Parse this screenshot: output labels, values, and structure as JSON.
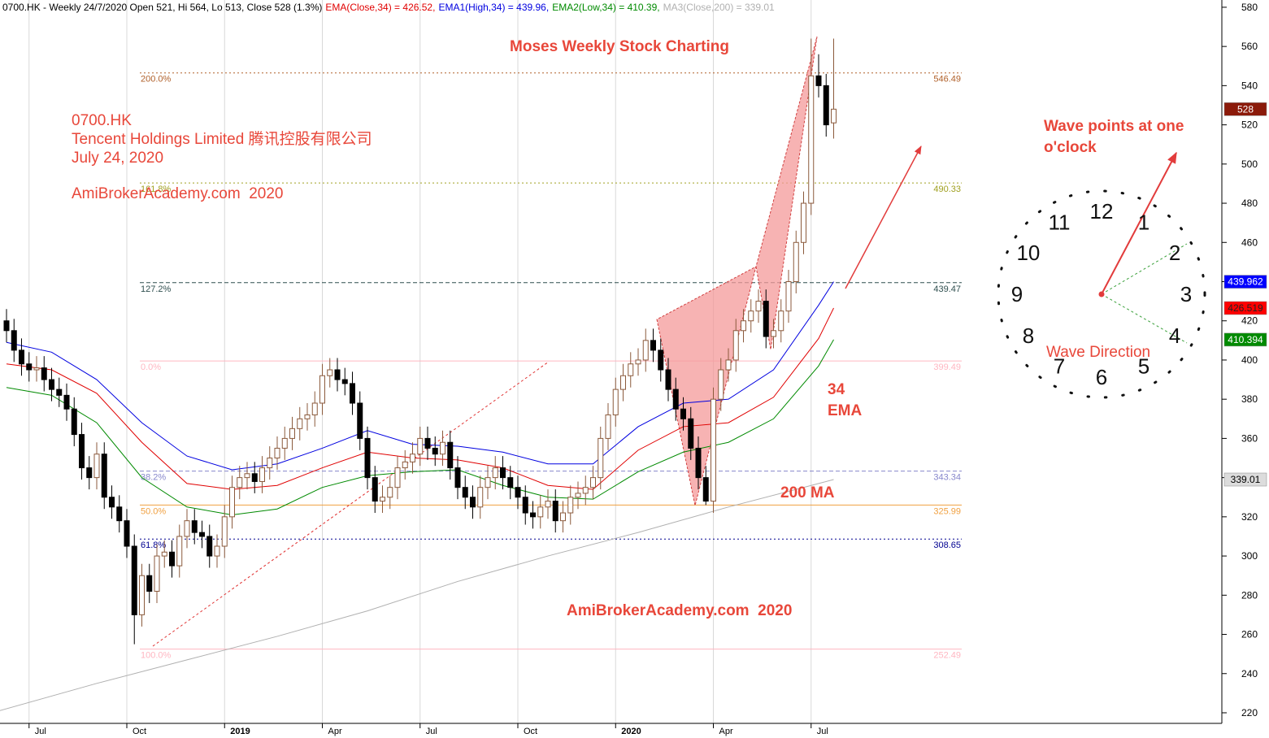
{
  "chart_data": {
    "type": "candlestick",
    "title": "0700.HK - Weekly 24/7/2020 Open 521, Hi 564, Lo 513, Close 528 (1.3%)",
    "categories": [
      null,
      null,
      null,
      "Jul",
      null,
      null,
      null,
      null,
      null,
      null,
      null,
      null,
      null,
      null,
      null,
      null,
      "Oct",
      null,
      null,
      null,
      null,
      null,
      null,
      null,
      null,
      null,
      null,
      null,
      null,
      "2019",
      null,
      null,
      null,
      null,
      null,
      null,
      null,
      null,
      null,
      null,
      null,
      null,
      "Apr",
      null,
      null,
      null,
      null,
      null,
      null,
      null,
      null,
      null,
      null,
      null,
      null,
      "Jul",
      null,
      null,
      null,
      null,
      null,
      null,
      null,
      null,
      null,
      null,
      null,
      null,
      "Oct",
      null,
      null,
      null,
      null,
      null,
      null,
      null,
      null,
      null,
      null,
      null,
      null,
      "2020",
      null,
      null,
      null,
      null,
      null,
      null,
      null,
      null,
      null,
      null,
      null,
      null,
      "Apr",
      null,
      null,
      null,
      null,
      null,
      null,
      null,
      null,
      null,
      null,
      null,
      null,
      "Jul",
      null,
      null,
      null
    ],
    "ohlc": {
      "up_color": "#8b5a3c",
      "down_color": "#000000",
      "open": [
        420,
        415,
        405,
        398,
        395,
        396,
        390,
        385,
        382,
        375,
        362,
        345,
        340,
        352,
        330,
        325,
        318,
        305,
        270,
        290,
        282,
        300,
        302,
        295,
        310,
        318,
        312,
        310,
        300,
        305,
        320,
        335,
        340,
        342,
        338,
        345,
        350,
        355,
        360,
        365,
        370,
        372,
        378,
        392,
        395,
        390,
        388,
        378,
        360,
        340,
        328,
        330,
        335,
        345,
        348,
        352,
        360,
        355,
        352,
        358,
        345,
        335,
        330,
        325,
        335,
        340,
        345,
        340,
        335,
        330,
        322,
        320,
        325,
        328,
        318,
        322,
        330,
        332,
        335,
        340,
        360,
        372,
        385,
        392,
        398,
        400,
        410,
        405,
        395,
        385,
        375,
        370,
        355,
        340,
        328,
        380,
        395,
        400,
        415,
        420,
        425,
        430,
        412,
        415,
        425,
        440,
        460,
        480,
        545,
        540,
        521
      ],
      "high": [
        426,
        421,
        411,
        404,
        402,
        402,
        396,
        391,
        388,
        381,
        368,
        351,
        358,
        358,
        336,
        331,
        324,
        311,
        296,
        296,
        306,
        308,
        308,
        316,
        324,
        324,
        318,
        316,
        311,
        326,
        341,
        346,
        348,
        348,
        351,
        356,
        361,
        366,
        371,
        376,
        378,
        384,
        398,
        401,
        401,
        396,
        394,
        384,
        366,
        346,
        336,
        341,
        351,
        354,
        358,
        366,
        366,
        361,
        364,
        364,
        351,
        341,
        336,
        341,
        346,
        351,
        351,
        346,
        341,
        336,
        328,
        331,
        334,
        334,
        328,
        336,
        338,
        341,
        346,
        366,
        378,
        391,
        398,
        404,
        406,
        416,
        416,
        411,
        401,
        391,
        381,
        376,
        361,
        346,
        386,
        401,
        406,
        421,
        426,
        431,
        436,
        436,
        421,
        431,
        446,
        466,
        486,
        564,
        556,
        546,
        564
      ],
      "low": [
        409,
        399,
        392,
        389,
        389,
        384,
        379,
        376,
        369,
        356,
        339,
        334,
        334,
        324,
        319,
        312,
        299,
        255,
        264,
        276,
        276,
        294,
        289,
        289,
        304,
        306,
        304,
        294,
        294,
        299,
        314,
        329,
        334,
        332,
        332,
        339,
        344,
        349,
        354,
        359,
        364,
        366,
        372,
        386,
        384,
        382,
        372,
        354,
        334,
        322,
        322,
        324,
        329,
        339,
        342,
        346,
        349,
        346,
        346,
        339,
        329,
        324,
        319,
        319,
        329,
        334,
        334,
        329,
        324,
        316,
        314,
        314,
        319,
        312,
        312,
        316,
        324,
        326,
        329,
        334,
        354,
        366,
        379,
        386,
        392,
        394,
        399,
        389,
        379,
        369,
        364,
        349,
        334,
        326,
        322,
        374,
        389,
        394,
        409,
        414,
        419,
        406,
        406,
        409,
        419,
        434,
        454,
        474,
        534,
        514,
        513
      ],
      "close": [
        415,
        405,
        398,
        395,
        396,
        390,
        385,
        382,
        375,
        362,
        345,
        340,
        352,
        330,
        325,
        318,
        305,
        270,
        290,
        282,
        300,
        302,
        295,
        310,
        318,
        312,
        310,
        300,
        305,
        320,
        335,
        340,
        342,
        338,
        345,
        350,
        355,
        360,
        365,
        370,
        372,
        378,
        392,
        395,
        390,
        388,
        378,
        360,
        340,
        328,
        330,
        335,
        345,
        348,
        352,
        360,
        355,
        352,
        358,
        345,
        335,
        330,
        325,
        335,
        340,
        345,
        340,
        335,
        330,
        322,
        320,
        325,
        328,
        318,
        322,
        330,
        332,
        335,
        340,
        360,
        372,
        385,
        392,
        398,
        400,
        410,
        405,
        395,
        385,
        375,
        370,
        355,
        340,
        328,
        380,
        395,
        400,
        415,
        420,
        425,
        430,
        412,
        415,
        425,
        440,
        460,
        480,
        545,
        540,
        520,
        528
      ]
    },
    "series": [
      {
        "name": "EMA(Close,34) = 426.52,",
        "color": "#e00000",
        "x": [
          0,
          6,
          12,
          18,
          24,
          30,
          36,
          42,
          48,
          54,
          60,
          66,
          72,
          78,
          84,
          90,
          96,
          102,
          108,
          110
        ],
        "values": [
          398,
          395,
          383,
          358,
          337,
          334,
          336,
          345,
          353,
          350,
          349,
          345,
          336,
          334,
          354,
          366,
          368,
          381,
          411,
          426.52
        ]
      },
      {
        "name": "EMA1(High,34) = 439.96,",
        "color": "#0000e0",
        "x": [
          0,
          6,
          12,
          18,
          24,
          30,
          36,
          42,
          48,
          54,
          60,
          66,
          72,
          78,
          84,
          90,
          96,
          102,
          108,
          110
        ],
        "values": [
          409,
          404,
          390,
          368,
          351,
          344,
          347,
          355,
          364,
          357,
          356,
          353,
          347,
          347,
          366,
          378,
          380,
          395,
          428,
          439.96
        ]
      },
      {
        "name": "EMA2(Low,34) = 410.39,",
        "color": "#008a00",
        "x": [
          0,
          6,
          12,
          18,
          24,
          30,
          36,
          42,
          48,
          54,
          60,
          66,
          72,
          78,
          84,
          90,
          96,
          102,
          108,
          110
        ],
        "values": [
          386,
          382,
          368,
          340,
          325,
          321,
          324,
          335,
          341,
          343,
          344,
          336,
          330,
          329,
          343,
          353,
          358,
          370,
          397,
          410.39
        ]
      },
      {
        "name": "MA3(Close,200) = 339.01",
        "color": "#b0b0b0",
        "x": [
          -1,
          12,
          24,
          36,
          48,
          60,
          72,
          84,
          96,
          108,
          110
        ],
        "values": [
          221,
          235,
          247,
          259,
          272,
          287,
          300,
          312,
          325,
          337,
          339.01
        ]
      }
    ],
    "fib_levels": [
      {
        "label": "200.0%",
        "value": 546.49,
        "color": "#b0602a",
        "style": "dotted"
      },
      {
        "label": "161.8%",
        "value": 490.33,
        "color": "#a0a020",
        "style": "dotted"
      },
      {
        "label": "127.2%",
        "value": 439.47,
        "color": "#2f4f4f",
        "style": "dashed"
      },
      {
        "label": "0.0%",
        "value": 399.49,
        "color": "#ffb6c1",
        "style": "solid"
      },
      {
        "label": "38.2%",
        "value": 343.34,
        "color": "#8888cc",
        "style": "dashed"
      },
      {
        "label": "50.0%",
        "value": 325.99,
        "color": "#f0a040",
        "style": "solid"
      },
      {
        "label": "61.8%",
        "value": 308.65,
        "color": "#000090",
        "style": "dotted"
      },
      {
        "label": "100.0%",
        "value": 252.49,
        "color": "#ffb6c1",
        "style": "solid"
      }
    ],
    "price_tags": [
      {
        "value": 528,
        "color": "#8b1a0a",
        "text_color": "#ffffff"
      },
      {
        "value": 439.962,
        "color": "#0000ff",
        "text_color": "#ffffff"
      },
      {
        "value": 426.519,
        "color": "#ff0000",
        "text_color": "#222222"
      },
      {
        "value": 410.394,
        "color": "#008a00",
        "text_color": "#ffffff"
      },
      {
        "value": 339.01,
        "color": "#dcdcdc",
        "text_color": "#000000"
      }
    ],
    "ylim": [
      214.6,
      583.7
    ],
    "yticks": [
      220,
      240,
      260,
      280,
      300,
      320,
      340,
      360,
      380,
      400,
      420,
      440,
      460,
      480,
      500,
      520,
      540,
      560,
      580
    ],
    "annotations": [
      "Moses Weekly Stock Charting",
      "0700.HK",
      "Tencent Holdings Limited 腾讯控股有限公司",
      "July 24, 2020",
      "AmiBrokerAcademy.com  2020",
      "34",
      "EMA",
      "200 MA",
      "AmiBrokerAcademy.com  2020",
      "Wave points at one",
      "o'clock",
      "Wave Direction"
    ],
    "clock_numbers": [
      12,
      1,
      2,
      3,
      4,
      5,
      6,
      7,
      8,
      9,
      10,
      11
    ]
  }
}
